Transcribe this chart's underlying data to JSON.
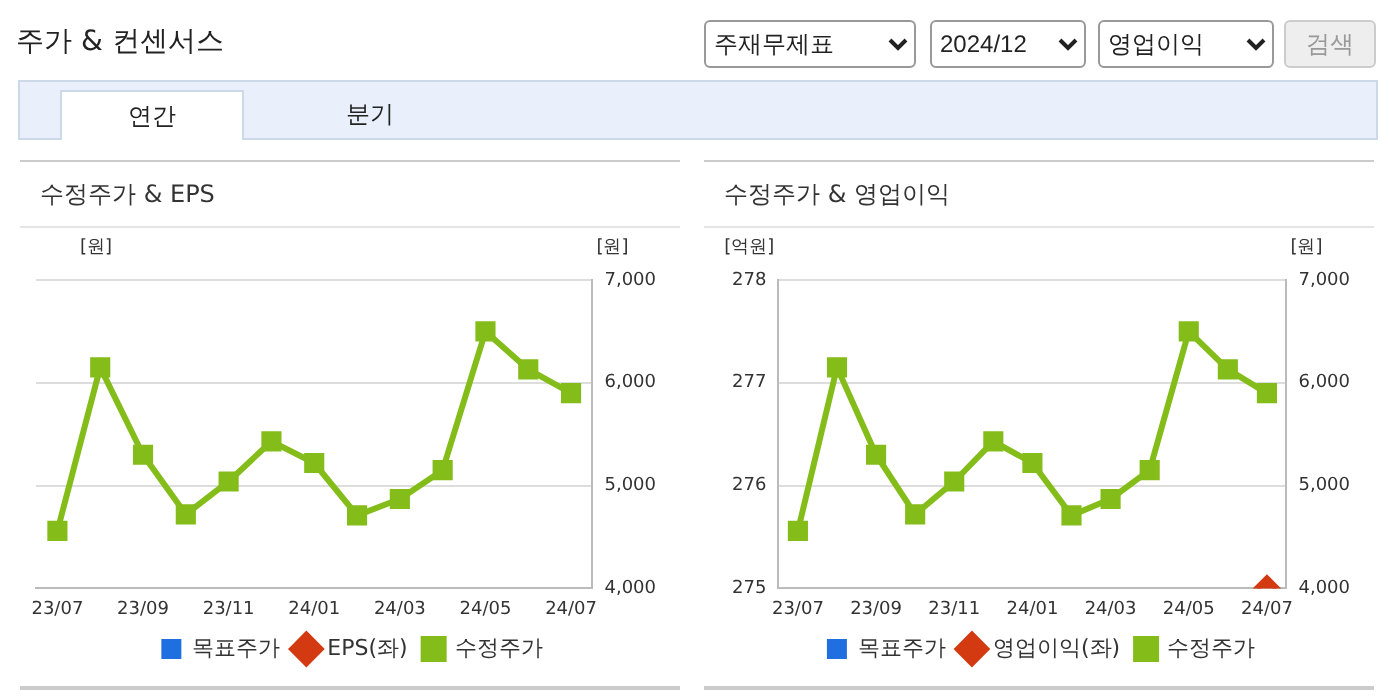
{
  "chart_data": [
    {
      "type": "other",
      "title": "주가 & 컨센서스",
      "annotations": [
        "주재무제표",
        "2024/12",
        "영업이익",
        "검색",
        "연간",
        "분기"
      ]
    },
    {
      "type": "line",
      "title": "수정주가 & EPS",
      "ylabel": "[원]",
      "y2label": "[원]",
      "categories": [
        "23/07",
        null,
        "23/09",
        null,
        "23/11",
        null,
        "24/01",
        null,
        "24/03",
        null,
        "24/05",
        null,
        "24/07"
      ],
      "series": [
        {
          "name": "목표주가",
          "type": "bar",
          "color": "#1f6fe0",
          "values": [
            null,
            null,
            null,
            null,
            null,
            null,
            null,
            null,
            null,
            null,
            null,
            null,
            null
          ]
        },
        {
          "name": "EPS(좌)",
          "type": "line",
          "color": "#d43a12",
          "marker": "diamond",
          "values": [
            null,
            null,
            null,
            null,
            null,
            null,
            null,
            null,
            null,
            null,
            null,
            null,
            null
          ]
        },
        {
          "name": "수정주가",
          "type": "line",
          "color": "#84bd1a",
          "marker": "square",
          "axis": "y2",
          "values": [
            4560,
            6150,
            5300,
            4720,
            5040,
            5430,
            5220,
            4710,
            4870,
            5150,
            6500,
            6130,
            5900
          ]
        }
      ],
      "y2lim": [
        4000,
        7000
      ],
      "y2ticks": [
        {
          "value": 4000,
          "label": "4,000"
        },
        {
          "value": 5000,
          "label": "5,000"
        },
        {
          "value": 6000,
          "label": "6,000"
        },
        {
          "value": 7000,
          "label": "7,000"
        }
      ],
      "grid": "y",
      "legend": "bottom"
    },
    {
      "type": "line",
      "title": "수정주가 & 영업이익",
      "ylabel": "[억원]",
      "y2label": "[원]",
      "categories": [
        "23/07",
        null,
        "23/09",
        null,
        "23/11",
        null,
        "24/01",
        null,
        "24/03",
        null,
        "24/05",
        null,
        "24/07"
      ],
      "series": [
        {
          "name": "목표주가",
          "type": "bar",
          "color": "#1f6fe0",
          "values": [
            null,
            null,
            null,
            null,
            null,
            null,
            null,
            null,
            null,
            null,
            null,
            null,
            null
          ]
        },
        {
          "name": "영업이익(좌)",
          "type": "line",
          "color": "#d43a12",
          "marker": "diamond",
          "values": [
            null,
            null,
            null,
            null,
            null,
            null,
            null,
            null,
            null,
            null,
            null,
            null,
            275
          ]
        },
        {
          "name": "수정주가",
          "type": "line",
          "color": "#84bd1a",
          "marker": "square",
          "axis": "y2",
          "values": [
            4560,
            6150,
            5300,
            4720,
            5040,
            5430,
            5220,
            4710,
            4870,
            5150,
            6500,
            6130,
            5900
          ]
        }
      ],
      "ylim": [
        275,
        278
      ],
      "yticks": [
        275,
        276,
        277,
        278
      ],
      "y2lim": [
        4000,
        7000
      ],
      "y2ticks": [
        {
          "value": 4000,
          "label": "4,000"
        },
        {
          "value": 5000,
          "label": "5,000"
        },
        {
          "value": 6000,
          "label": "6,000"
        },
        {
          "value": 7000,
          "label": "7,000"
        }
      ],
      "grid": "y",
      "legend": "bottom"
    }
  ]
}
